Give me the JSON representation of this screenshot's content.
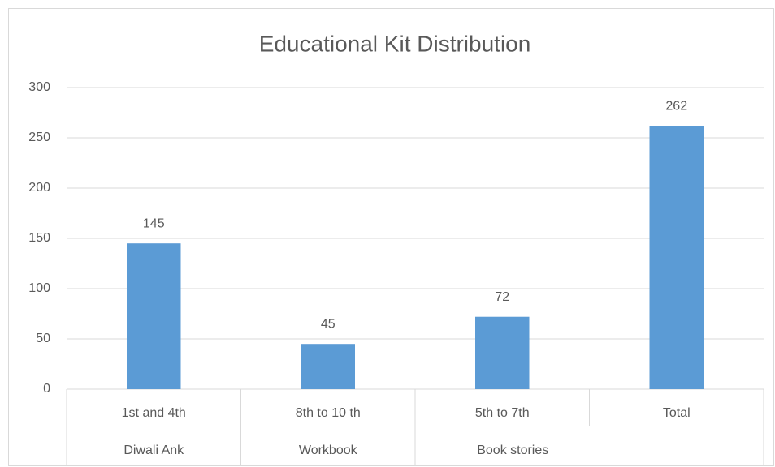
{
  "chart_data": {
    "type": "bar",
    "title": "Educational Kit Distribution",
    "categories": [
      "1st and 4th",
      "8th to 10 th",
      "5th to 7th",
      "Total"
    ],
    "group_labels": [
      "Diwali Ank",
      "Workbook",
      "Book stories",
      null
    ],
    "values": [
      145,
      45,
      72,
      262
    ],
    "color": "#5b9bd5",
    "ylim": [
      0,
      300
    ],
    "yticks": [
      0,
      50,
      100,
      150,
      200,
      250,
      300
    ],
    "grid": true
  }
}
